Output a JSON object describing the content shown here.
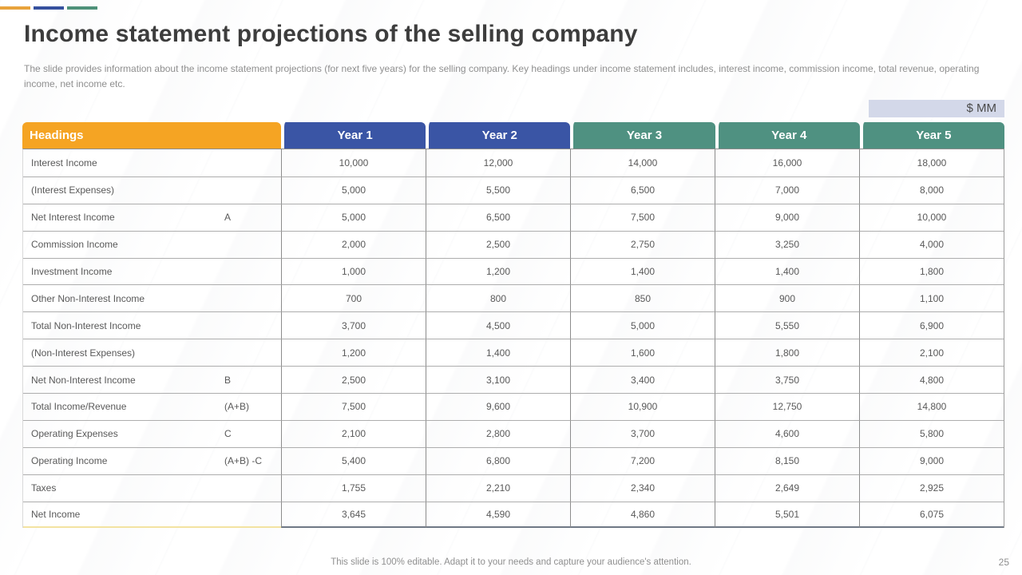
{
  "slide": {
    "title": "Income statement projections of the selling company",
    "subtitle": "The slide provides information about the income statement projections (for next five years) for the selling company. Key headings under income statement includes, interest income, commission income, total revenue, operating income, net income etc.",
    "unit_label": "$ MM",
    "footer_note": "This slide is 100% editable. Adapt it to your needs and capture your audience's attention.",
    "page_number": "25"
  },
  "colors": {
    "accent_bars": [
      "#E8A33C",
      "#36519E",
      "#4E9179"
    ],
    "headings_header_bg": "#F5A423",
    "year_header_colors": [
      "#3A55A5",
      "#3A55A5",
      "#4F9181",
      "#4F9181",
      "#4F9181"
    ],
    "unit_chip_bg": "#D3D8E9",
    "label_column_bottom_border": "#F3E3A1",
    "year_column_bottom_border": "#6F7885"
  },
  "table": {
    "headings_label": "Headings",
    "year_headers": [
      "Year 1",
      "Year 2",
      "Year 3",
      "Year 4",
      "Year 5"
    ],
    "rows": [
      {
        "label": "Interest Income",
        "code": "",
        "values": [
          "10,000",
          "12,000",
          "14,000",
          "16,000",
          "18,000"
        ]
      },
      {
        "label": "(Interest Expenses)",
        "code": "",
        "values": [
          "5,000",
          "5,500",
          "6,500",
          "7,000",
          "8,000"
        ]
      },
      {
        "label": "Net Interest Income",
        "code": "A",
        "values": [
          "5,000",
          "6,500",
          "7,500",
          "9,000",
          "10,000"
        ]
      },
      {
        "label": "Commission Income",
        "code": "",
        "values": [
          "2,000",
          "2,500",
          "2,750",
          "3,250",
          "4,000"
        ]
      },
      {
        "label": "Investment Income",
        "code": "",
        "values": [
          "1,000",
          "1,200",
          "1,400",
          "1,400",
          "1,800"
        ]
      },
      {
        "label": "Other Non-Interest Income",
        "code": "",
        "values": [
          "700",
          "800",
          "850",
          "900",
          "1,100"
        ]
      },
      {
        "label": "Total Non-Interest Income",
        "code": "",
        "values": [
          "3,700",
          "4,500",
          "5,000",
          "5,550",
          "6,900"
        ]
      },
      {
        "label": "(Non-Interest Expenses)",
        "code": "",
        "values": [
          "1,200",
          "1,400",
          "1,600",
          "1,800",
          "2,100"
        ]
      },
      {
        "label": "Net Non-Interest Income",
        "code": "B",
        "values": [
          "2,500",
          "3,100",
          "3,400",
          "3,750",
          "4,800"
        ]
      },
      {
        "label": "Total Income/Revenue",
        "code": "(A+B)",
        "values": [
          "7,500",
          "9,600",
          "10,900",
          "12,750",
          "14,800"
        ]
      },
      {
        "label": "Operating Expenses",
        "code": "C",
        "values": [
          "2,100",
          "2,800",
          "3,700",
          "4,600",
          "5,800"
        ]
      },
      {
        "label": "Operating Income",
        "code": "(A+B) -C",
        "values": [
          "5,400",
          "6,800",
          "7,200",
          "8,150",
          "9,000"
        ]
      },
      {
        "label": "Taxes",
        "code": "",
        "values": [
          "1,755",
          "2,210",
          "2,340",
          "2,649",
          "2,925"
        ]
      },
      {
        "label": "Net Income",
        "code": "",
        "values": [
          "3,645",
          "4,590",
          "4,860",
          "5,501",
          "6,075"
        ]
      }
    ]
  }
}
